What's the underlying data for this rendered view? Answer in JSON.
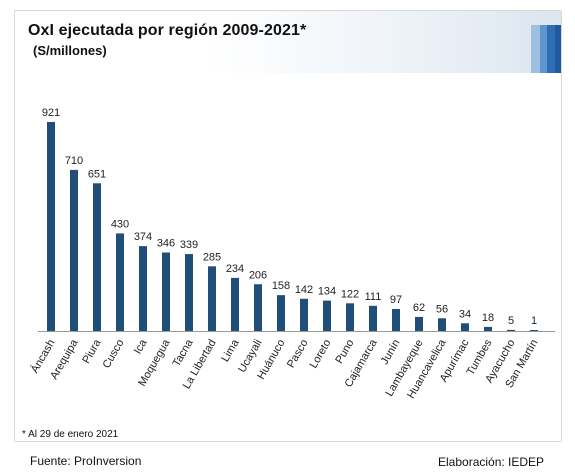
{
  "header": {
    "title": "OxI ejecutada por región 2009-2021*",
    "subtitle": "(S/millones)",
    "stripe_colors": [
      "#9fbfe0",
      "#5f95cf",
      "#2f6db5",
      "#1f5a9c"
    ]
  },
  "footer": {
    "footnote": "* Al 29 de enero 2021",
    "source": "Fuente: ProInversion",
    "credit": "Elaboración: IEDEP"
  },
  "chart_data": {
    "type": "bar",
    "title": "OxI ejecutada por región 2009-2021*",
    "ylabel": "(S/millones)",
    "xlabel": "",
    "bar_color": "#1f4e79",
    "ylim": [
      0,
      921
    ],
    "grid": false,
    "legend": "none",
    "categories": [
      "Áncash",
      "Arequipa",
      "Piura",
      "Cusco",
      "Ica",
      "Moquegua",
      "Tacna",
      "La Libertad",
      "Lima",
      "Ucayali",
      "Huánuco",
      "Pasco",
      "Loreto",
      "Puno",
      "Cajamarca",
      "Junín",
      "Lambayeque",
      "Huancavelica",
      "Apurímac",
      "Tumbes",
      "Ayacucho",
      "San Martín"
    ],
    "values": [
      921,
      710,
      651,
      430,
      374,
      346,
      339,
      285,
      234,
      206,
      158,
      142,
      134,
      122,
      111,
      97,
      62,
      56,
      34,
      18,
      5,
      1
    ]
  }
}
